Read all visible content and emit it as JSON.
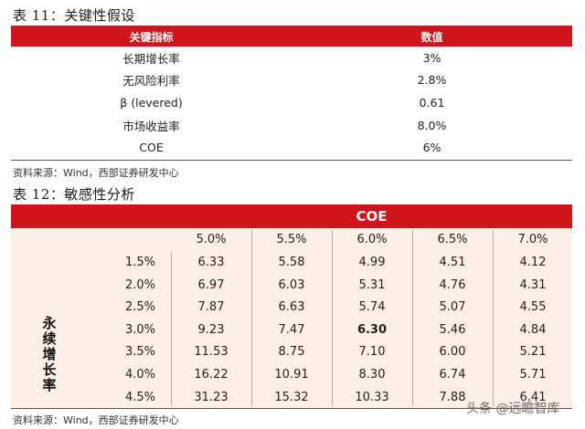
{
  "table11": {
    "caption": "表 11：关键性假设",
    "headers": [
      "关键指标",
      "数值"
    ],
    "rows": [
      [
        "长期增长率",
        "3%"
      ],
      [
        "无风险利率",
        "2.8%"
      ],
      [
        "β (levered)",
        "0.61"
      ],
      [
        "市场收益率",
        "8.0%"
      ],
      [
        "COE",
        "6%"
      ]
    ],
    "source": "资料来源：Wind，西部证券研发中心"
  },
  "table12": {
    "caption": "表 12：敏感性分析",
    "col_header": "COE",
    "row_header": [
      "永",
      "续",
      "增",
      "长",
      "率"
    ],
    "coe_values": [
      "5.0%",
      "5.5%",
      "6.0%",
      "6.5%",
      "7.0%"
    ],
    "growth_values": [
      "1.5%",
      "2.0%",
      "2.5%",
      "3.0%",
      "3.5%",
      "4.0%",
      "4.5%"
    ],
    "cells": [
      [
        "6.33",
        "5.58",
        "4.99",
        "4.51",
        "4.12"
      ],
      [
        "6.97",
        "6.03",
        "5.31",
        "4.76",
        "4.31"
      ],
      [
        "7.87",
        "6.63",
        "5.74",
        "5.07",
        "4.55"
      ],
      [
        "9.23",
        "7.47",
        "6.30",
        "5.46",
        "4.84"
      ],
      [
        "11.53",
        "8.75",
        "7.10",
        "6.00",
        "5.21"
      ],
      [
        "16.22",
        "10.91",
        "8.30",
        "6.74",
        "5.71"
      ],
      [
        "31.23",
        "15.32",
        "10.33",
        "7.88",
        "6.41"
      ]
    ],
    "highlight": {
      "row": 3,
      "col": 2
    },
    "source": "资料来源：Wind，西部证券研发中心"
  },
  "watermark": "头条 @远瞻智库",
  "colors": {
    "accent_red": "#d0141c",
    "body_tint": "#fcefe7"
  }
}
